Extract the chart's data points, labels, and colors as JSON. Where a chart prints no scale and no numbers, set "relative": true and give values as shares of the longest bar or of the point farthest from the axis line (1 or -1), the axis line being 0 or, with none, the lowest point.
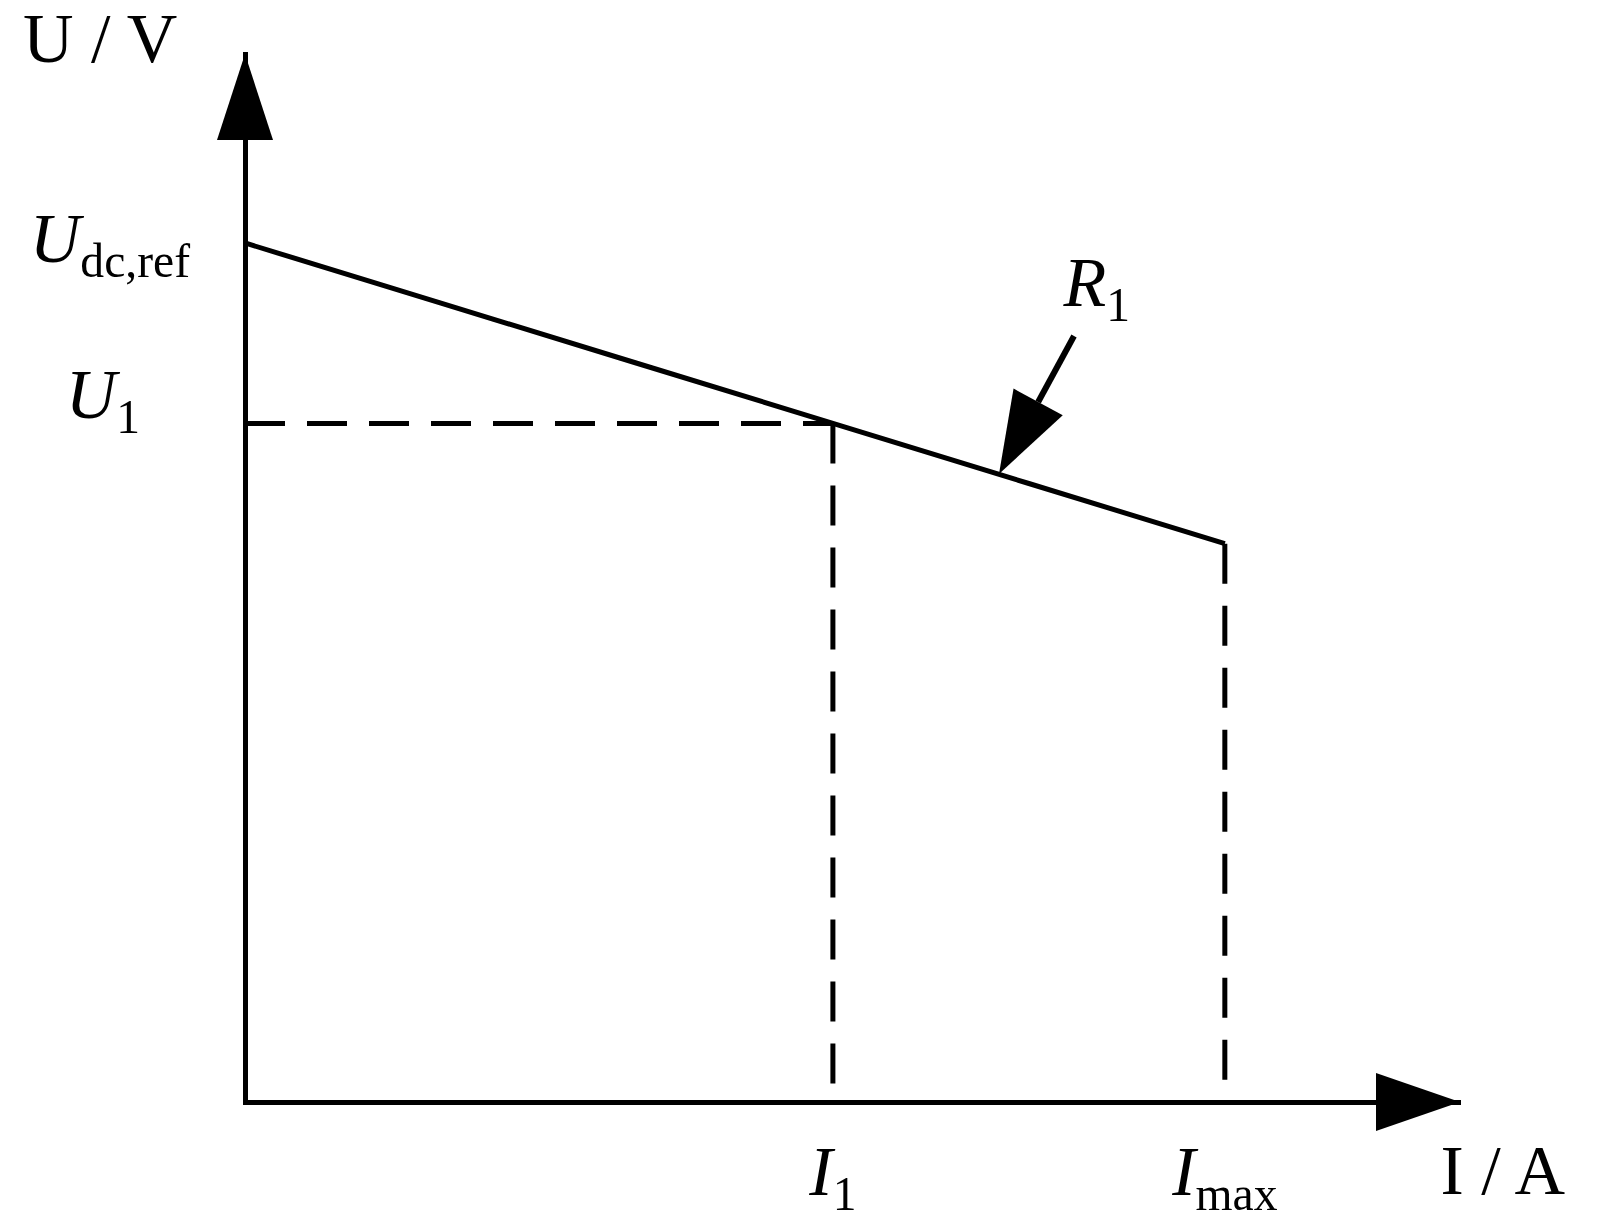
{
  "chart_data": {
    "type": "line",
    "relative": true,
    "xlabel": "I / A",
    "ylabel": "U / V",
    "categories": [
      null,
      null,
      null,
      "I$_{1}$",
      null,
      "I$_{max}$"
    ],
    "series": [
      {
        "color": "#000000",
        "line_style": "solid",
        "values": [
          1,
          0.93,
          0.86,
          0.79,
          0.72,
          0.65
        ]
      }
    ],
    "ref_lines": [
      {
        "axis": "y",
        "value": 0.79,
        "label": "U$_{1}$",
        "color": "#000000",
        "line_style": "dashed"
      },
      {
        "axis": "x",
        "value": "I$_{1}$",
        "color": "#000000",
        "line_style": "dashed"
      },
      {
        "axis": "x",
        "value": "I$_{max}$",
        "color": "#000000",
        "line_style": "dashed"
      }
    ],
    "annotations": [
      "U$_{dc,ref}$",
      "R$_{1}$"
    ]
  }
}
